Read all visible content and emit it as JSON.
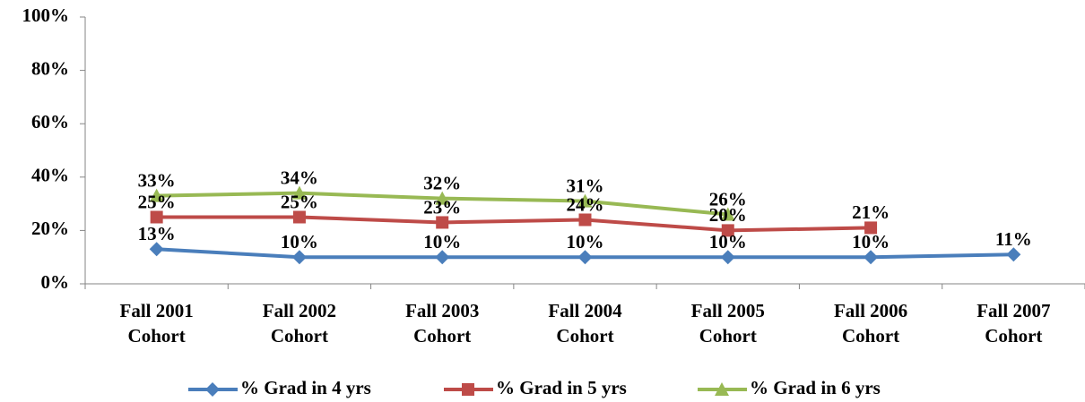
{
  "chart_data": {
    "type": "line",
    "categories": [
      "Fall 2001 Cohort",
      "Fall 2002 Cohort",
      "Fall 2003 Cohort",
      "Fall 2004 Cohort",
      "Fall 2005 Cohort",
      "Fall 2006 Cohort",
      "Fall 2007 Cohort"
    ],
    "series": [
      {
        "name": "% Grad in 4 yrs",
        "color": "#4a7ebb",
        "marker": "diamond",
        "values": [
          13,
          10,
          10,
          10,
          10,
          10,
          11
        ],
        "value_labels": [
          "13%",
          "10%",
          "10%",
          "10%",
          "10%",
          "10%",
          "11%"
        ]
      },
      {
        "name": "% Grad in 5 yrs",
        "color": "#be4b48",
        "marker": "square",
        "values": [
          25,
          25,
          23,
          24,
          20,
          21,
          null
        ],
        "value_labels": [
          "25%",
          "25%",
          "23%",
          "24%",
          "20%",
          "21%",
          null
        ]
      },
      {
        "name": "% Grad in 6 yrs",
        "color": "#98b954",
        "marker": "triangle",
        "values": [
          33,
          34,
          32,
          31,
          26,
          null,
          null
        ],
        "value_labels": [
          "33%",
          "34%",
          "32%",
          "31%",
          "26%",
          null,
          null
        ]
      }
    ],
    "ylim": [
      0,
      100
    ],
    "yticks": [
      {
        "value": 0,
        "label": "0%"
      },
      {
        "value": 20,
        "label": "20%"
      },
      {
        "value": 40,
        "label": "40%"
      },
      {
        "value": 60,
        "label": "60%"
      },
      {
        "value": 80,
        "label": "80%"
      },
      {
        "value": 100,
        "label": "100%"
      }
    ],
    "grid": false,
    "legend": "bottom"
  }
}
